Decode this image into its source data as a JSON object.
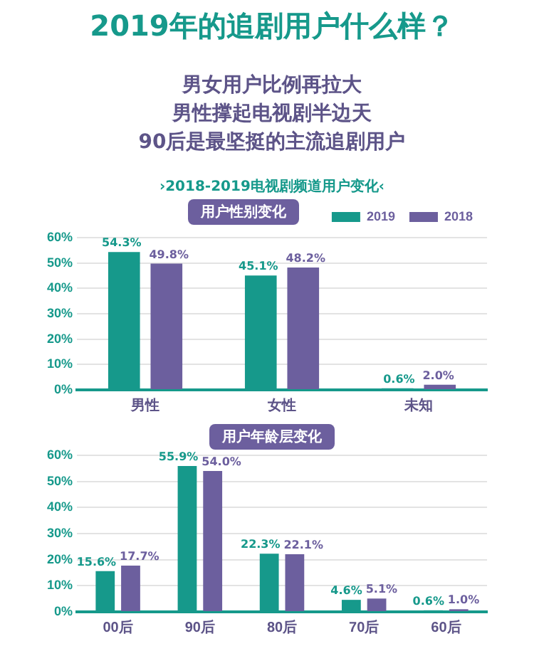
{
  "chart_data": [
    {
      "type": "bar",
      "title": "2019年的追剧用户什么样？",
      "subtitle": "男女用户比例再拉大",
      "annotations": [
        "男性撑起电视剧半边天",
        "90后是最坚挺的主流追剧用户",
        "›2018-2019电视剧频道用户变化‹",
        "用户性别变化"
      ],
      "categories": [
        "男性",
        "女性",
        "未知"
      ],
      "series": [
        {
          "name": "2019",
          "color": "#16998b",
          "values": [
            54.3,
            45.1,
            0.6
          ],
          "value_labels": [
            "54.3%",
            "45.1%",
            "0.6%"
          ]
        },
        {
          "name": "2018",
          "color": "#6c5f9e",
          "values": [
            49.8,
            48.2,
            2.0
          ],
          "value_labels": [
            "49.8%",
            "48.2%",
            "2.0%"
          ]
        }
      ],
      "ylim": [
        0,
        60
      ],
      "yticks": [
        {
          "value": 0,
          "label": "0%"
        },
        {
          "value": 10,
          "label": "10%"
        },
        {
          "value": 20,
          "label": "20%"
        },
        {
          "value": 30,
          "label": "30%"
        },
        {
          "value": 40,
          "label": "40%"
        },
        {
          "value": 50,
          "label": "50%"
        },
        {
          "value": 60,
          "label": "60%"
        }
      ],
      "grid": "y",
      "legend": "top right"
    },
    {
      "type": "bar",
      "annotations": [
        "用户年龄层变化"
      ],
      "categories": [
        "00后",
        "90后",
        "80后",
        "70后",
        "60后"
      ],
      "series": [
        {
          "color": "#16998b",
          "values": [
            15.6,
            55.9,
            22.3,
            4.6,
            0.6
          ],
          "value_labels": [
            "15.6%",
            "55.9%",
            "22.3%",
            "4.6%",
            "0.6%"
          ]
        },
        {
          "color": "#6c5f9e",
          "values": [
            17.7,
            54.0,
            22.1,
            5.1,
            1.0
          ],
          "value_labels": [
            "17.7%",
            "54.0%",
            "22.1%",
            "5.1%",
            "1.0%"
          ]
        }
      ],
      "ylim": [
        0,
        60
      ],
      "yticks": [
        {
          "value": 0,
          "label": "0%"
        },
        {
          "value": 10,
          "label": "10%"
        },
        {
          "value": 20,
          "label": "20%"
        },
        {
          "value": 30,
          "label": "30%"
        },
        {
          "value": 40,
          "label": "40%"
        },
        {
          "value": 50,
          "label": "50%"
        },
        {
          "value": 60,
          "label": "60%"
        }
      ],
      "grid": "y",
      "legend": false
    }
  ]
}
